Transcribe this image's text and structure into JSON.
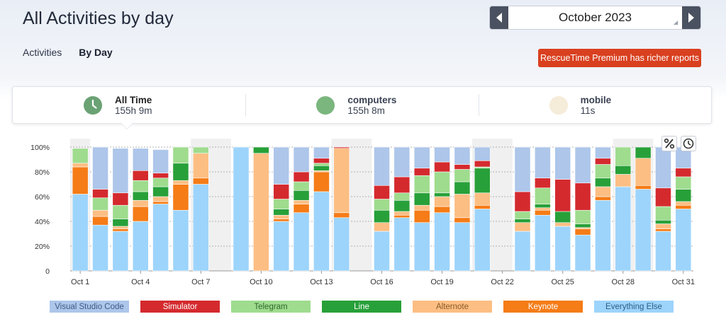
{
  "header": {
    "title": "All Activities by day"
  },
  "month_picker": {
    "month": "October 2023"
  },
  "tabs": [
    {
      "label": "Activities",
      "active": false
    },
    {
      "label": "By Day",
      "active": true
    }
  ],
  "premium_button": {
    "label": "RescueTime Premium has richer reports",
    "color": "#d9401f"
  },
  "summary": [
    {
      "label": "All Time",
      "value": "155h 9m",
      "color": "#6aa274",
      "icon": "clock-icon"
    },
    {
      "label": "computers",
      "value": "155h 8m",
      "color": "#7ab67e",
      "icon": "circle"
    },
    {
      "label": "mobile",
      "value": "11s",
      "color": "#f5ecd9",
      "icon": "circle"
    }
  ],
  "chart_data": {
    "type": "bar",
    "stacked": true,
    "ylim": [
      0,
      100
    ],
    "y_ticks": [
      "0",
      "20%",
      "40%",
      "60%",
      "80%",
      "100%"
    ],
    "x_tick_labels": [
      {
        "day": 1,
        "label": "Oct 1"
      },
      {
        "day": 4,
        "label": "Oct 4"
      },
      {
        "day": 7,
        "label": "Oct 7"
      },
      {
        "day": 10,
        "label": "Oct 10"
      },
      {
        "day": 13,
        "label": "Oct 13"
      },
      {
        "day": 16,
        "label": "Oct 16"
      },
      {
        "day": 19,
        "label": "Oct 19"
      },
      {
        "day": 22,
        "label": "Oct 22"
      },
      {
        "day": 25,
        "label": "Oct 25"
      },
      {
        "day": 28,
        "label": "Oct 28"
      },
      {
        "day": 31,
        "label": "Oct 31"
      }
    ],
    "weekend_days": [
      1,
      7,
      8,
      14,
      15,
      21,
      22,
      28,
      29
    ],
    "series_order_bottom_up": [
      "Everything Else",
      "Keynote",
      "Alternote",
      "Line",
      "Telegram",
      "Simulator",
      "Visual Studio Code"
    ],
    "days": [
      {
        "day": 1,
        "values": [
          62,
          22,
          3,
          0,
          12,
          0,
          0
        ]
      },
      {
        "day": 2,
        "values": [
          37,
          7,
          5,
          0,
          10,
          7,
          34
        ]
      },
      {
        "day": 3,
        "values": [
          32,
          2,
          2,
          6,
          11,
          10,
          36
        ]
      },
      {
        "day": 4,
        "values": [
          40,
          12,
          5,
          7,
          9,
          8,
          18
        ]
      },
      {
        "day": 5,
        "values": [
          54,
          2,
          4,
          8,
          7,
          4,
          19
        ]
      },
      {
        "day": 6,
        "values": [
          49,
          21,
          3,
          14,
          13,
          0,
          0
        ]
      },
      {
        "day": 7,
        "values": [
          70,
          5,
          20,
          0,
          5,
          0,
          0
        ]
      },
      {
        "day": 8,
        "values": [
          0,
          0,
          0,
          0,
          0,
          0,
          0
        ]
      },
      {
        "day": 9,
        "values": [
          100,
          0,
          0,
          0,
          0,
          0,
          0
        ]
      },
      {
        "day": 10,
        "values": [
          0,
          0,
          95,
          5,
          0,
          0,
          0
        ]
      },
      {
        "day": 11,
        "values": [
          40,
          2,
          3,
          5,
          8,
          12,
          30
        ]
      },
      {
        "day": 12,
        "values": [
          47,
          7,
          3,
          8,
          7,
          8,
          20
        ]
      },
      {
        "day": 13,
        "values": [
          64,
          16,
          1,
          4,
          2,
          4,
          9
        ]
      },
      {
        "day": 14,
        "values": [
          43,
          4,
          52,
          0,
          0,
          1,
          0
        ]
      },
      {
        "day": 15,
        "values": [
          0,
          0,
          0,
          0,
          0,
          0,
          0
        ]
      },
      {
        "day": 16,
        "values": [
          32,
          0,
          7,
          10,
          9,
          11,
          31
        ]
      },
      {
        "day": 17,
        "values": [
          43,
          2,
          3,
          9,
          6,
          13,
          24
        ]
      },
      {
        "day": 18,
        "values": [
          39,
          10,
          4,
          10,
          14,
          6,
          17
        ]
      },
      {
        "day": 19,
        "values": [
          47,
          5,
          8,
          3,
          17,
          8,
          12
        ]
      },
      {
        "day": 20,
        "values": [
          39,
          4,
          19,
          10,
          10,
          4,
          14
        ]
      },
      {
        "day": 21,
        "values": [
          50,
          3,
          10,
          20,
          1,
          5,
          11
        ]
      },
      {
        "day": 22,
        "values": [
          0,
          0,
          0,
          0,
          0,
          0,
          0
        ]
      },
      {
        "day": 23,
        "values": [
          32,
          0,
          7,
          3,
          6,
          16,
          36
        ]
      },
      {
        "day": 24,
        "values": [
          45,
          4,
          2,
          3,
          13,
          8,
          25
        ]
      },
      {
        "day": 25,
        "values": [
          36,
          0,
          3,
          9,
          0,
          26,
          26
        ]
      },
      {
        "day": 26,
        "values": [
          29,
          5,
          1,
          3,
          11,
          22,
          29
        ]
      },
      {
        "day": 27,
        "values": [
          57,
          3,
          8,
          7,
          11,
          5,
          9
        ]
      },
      {
        "day": 28,
        "values": [
          68,
          0,
          10,
          7,
          15,
          0,
          0
        ]
      },
      {
        "day": 29,
        "values": [
          66,
          3,
          22,
          9,
          0,
          0,
          0
        ]
      },
      {
        "day": 30,
        "values": [
          32,
          2,
          4,
          3,
          11,
          15,
          33
        ]
      },
      {
        "day": 31,
        "values": [
          50,
          3,
          3,
          10,
          10,
          7,
          17
        ]
      }
    ]
  },
  "legend": [
    {
      "label": "Visual Studio Code",
      "color": "#adc6ea",
      "text_color": "#3f5a86"
    },
    {
      "label": "Simulator",
      "color": "#d42a2e",
      "text_color": "#ffffff"
    },
    {
      "label": "Telegram",
      "color": "#9fdc8e",
      "text_color": "#2f6a2c"
    },
    {
      "label": "Line",
      "color": "#28a039",
      "text_color": "#ffffff"
    },
    {
      "label": "Alternote",
      "color": "#fcbe83",
      "text_color": "#8a5a25"
    },
    {
      "label": "Keynote",
      "color": "#f57c17",
      "text_color": "#ffffff"
    },
    {
      "label": "Everything Else",
      "color": "#9dd4fb",
      "text_color": "#2d5d86"
    }
  ],
  "series_colors_bottom_up": [
    "#9dd4fb",
    "#f57c17",
    "#fcbe83",
    "#28a039",
    "#9fdc8e",
    "#d42a2e",
    "#adc6ea"
  ],
  "chart_controls": [
    {
      "icon": "percent-icon"
    },
    {
      "icon": "clock-icon"
    }
  ]
}
